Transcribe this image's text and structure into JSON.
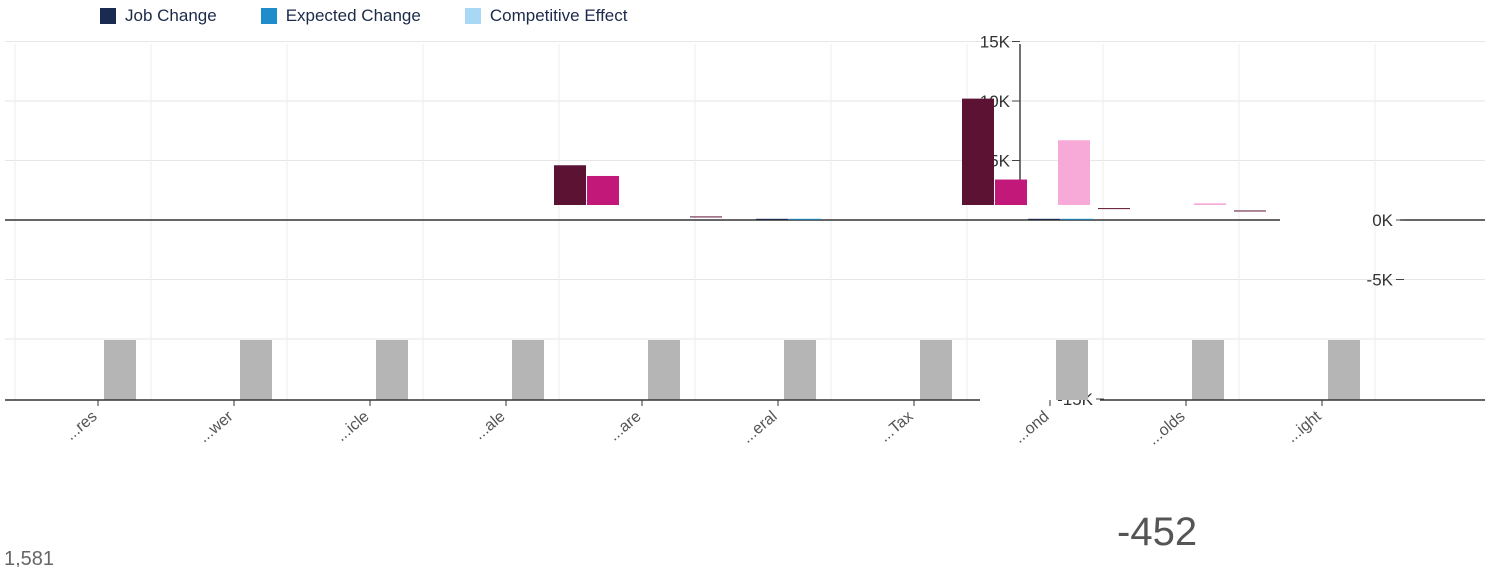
{
  "legend": [
    {
      "label": "Job Change",
      "color": "#1a2b52"
    },
    {
      "label": "Expected Change",
      "color": "#1f8ccc"
    },
    {
      "label": "Competitive Effect",
      "color": "#a9d8f5"
    }
  ],
  "chart_data": {
    "type": "bar",
    "y_ticks": [
      "15K",
      "10K",
      "5K",
      "0K",
      "-5K",
      "-15K"
    ],
    "ylim": [
      -15000,
      15000
    ],
    "categories": [
      "...res",
      "...wer",
      "...icle",
      "...ale",
      "...are",
      "...eral",
      "...Tax",
      "...ond",
      "...olds",
      "...ight"
    ],
    "series": [
      {
        "color": "#5c1232",
        "values": [
          0,
          0,
          0,
          0,
          4600,
          300,
          0,
          10200,
          1000,
          800
        ]
      },
      {
        "color": "#c2187a",
        "values": [
          0,
          0,
          0,
          0,
          3700,
          0,
          0,
          3400,
          0,
          0
        ]
      },
      {
        "color": "#1a2b52",
        "values": [
          0,
          0,
          0,
          0,
          0,
          100,
          0,
          100,
          0,
          0
        ]
      },
      {
        "color": "#1f8ccc",
        "values": [
          0,
          0,
          0,
          0,
          0,
          100,
          0,
          100,
          0,
          0
        ]
      },
      {
        "color": "#f7a9d8",
        "values": [
          0,
          0,
          0,
          0,
          0,
          0,
          0,
          6700,
          1400,
          0
        ]
      },
      {
        "color": "#b5b5b5",
        "values": [
          -14700,
          -14700,
          -14700,
          -14700,
          -14700,
          -14700,
          -14700,
          -14700,
          -14700,
          -14700
        ]
      }
    ],
    "numbers": [
      "-452",
      "1,581"
    ]
  }
}
